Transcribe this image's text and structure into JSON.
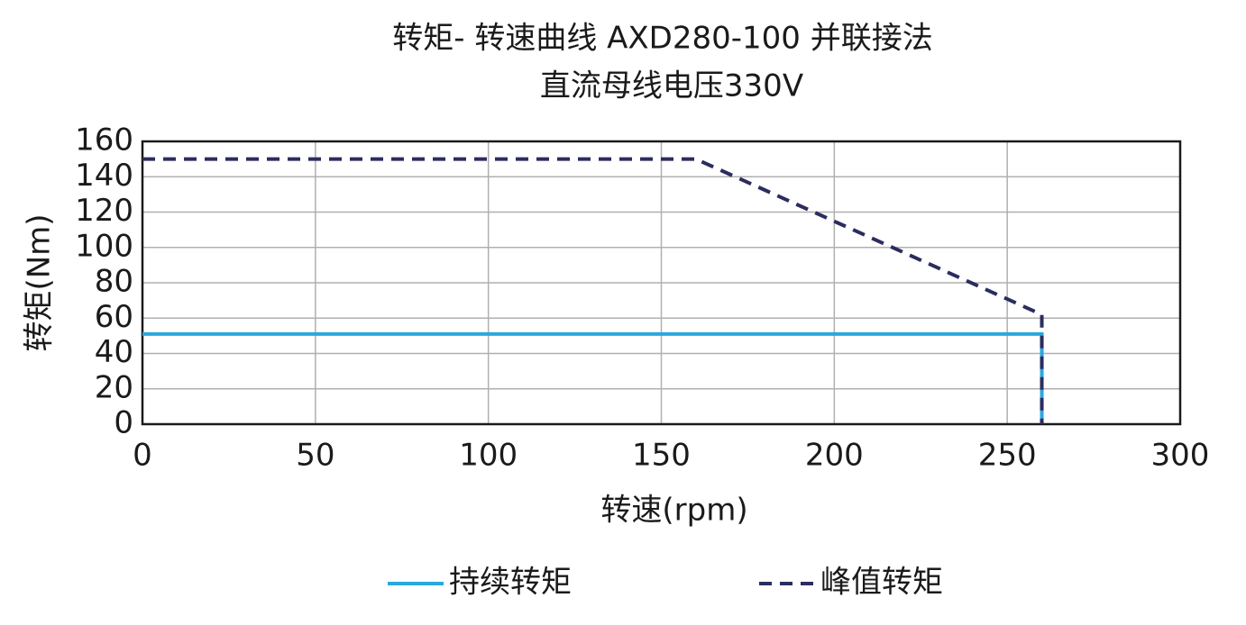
{
  "chart_data": {
    "type": "line",
    "title": "转矩- 转速曲线 AXD280-100 并联接法",
    "subtitle": "直流母线电压330V",
    "x_label": "转速(rpm)",
    "y_label": "转矩(Nm)",
    "xlim": [
      0,
      300
    ],
    "xticks": [
      0,
      50,
      100,
      150,
      200,
      250,
      300
    ],
    "ylim": [
      0,
      160
    ],
    "yticks": [
      0,
      20,
      40,
      60,
      80,
      100,
      120,
      140,
      160
    ],
    "grid": true,
    "legend": "bottom",
    "series": [
      {
        "name": "持续转矩",
        "color": "#29a8e0",
        "linestyle": "solid",
        "x": [
          0,
          260,
          260
        ],
        "values": [
          51,
          51,
          0
        ]
      },
      {
        "name": "峰值转矩",
        "color": "#2b2d5e",
        "linestyle": "dashed",
        "x": [
          0,
          160,
          260,
          260
        ],
        "values": [
          150,
          150,
          62,
          0
        ]
      }
    ]
  }
}
